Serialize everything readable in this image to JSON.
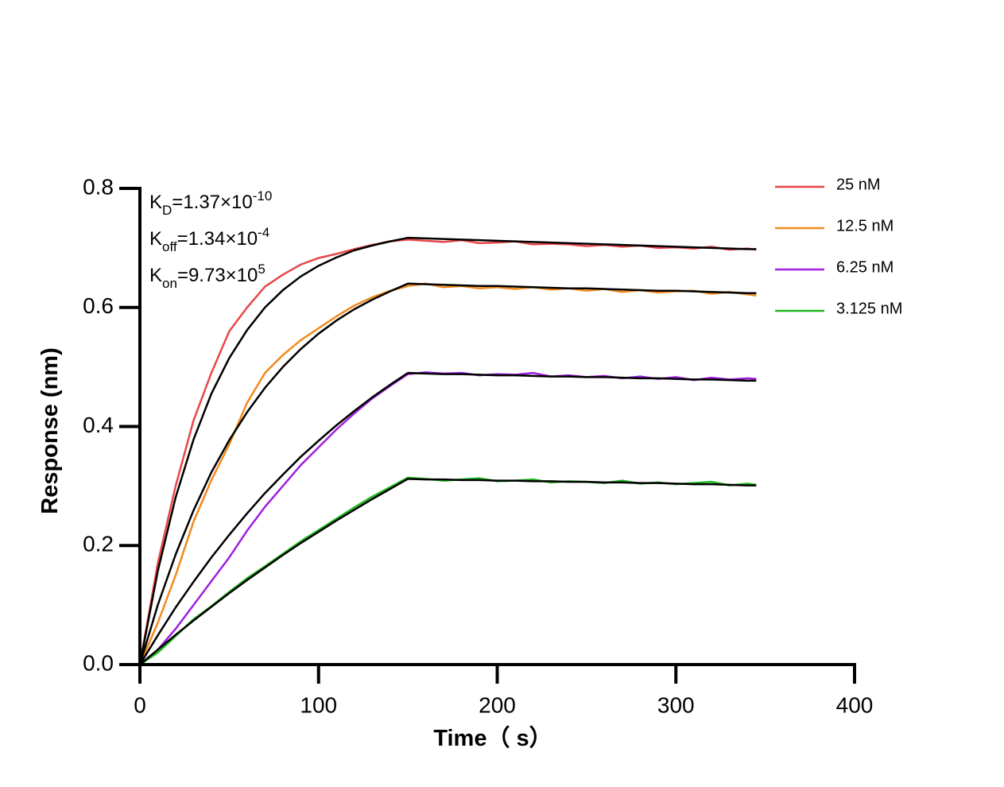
{
  "chart_data": {
    "type": "line",
    "xlabel": "Time（ s）",
    "ylabel": "Response (nm)",
    "annotations": [
      {
        "symbol": "K",
        "subscript": "D",
        "text": "=1.37×10",
        "superscript": "-10"
      },
      {
        "symbol": "K",
        "subscript": "off",
        "text": "=1.34×10",
        "superscript": "-4"
      },
      {
        "symbol": "K",
        "subscript": "on",
        "text": "=9.73×10",
        "superscript": "5"
      }
    ],
    "x": [
      0,
      10,
      20,
      30,
      40,
      50,
      60,
      70,
      80,
      90,
      100,
      110,
      120,
      130,
      140,
      150,
      160,
      170,
      180,
      190,
      200,
      210,
      220,
      230,
      240,
      250,
      260,
      270,
      280,
      290,
      300,
      310,
      320,
      330,
      340,
      345
    ],
    "series": [
      {
        "name": "25 nM",
        "color": "#e8474a",
        "values": [
          0,
          0.17,
          0.3,
          0.41,
          0.49,
          0.56,
          0.6,
          0.635,
          0.655,
          0.672,
          0.683,
          0.69,
          0.698,
          0.705,
          0.711,
          0.714,
          0.712,
          0.71,
          0.713,
          0.708,
          0.709,
          0.711,
          0.706,
          0.707,
          0.706,
          0.703,
          0.705,
          0.702,
          0.704,
          0.7,
          0.701,
          0.699,
          0.702,
          0.697,
          0.699,
          0.697
        ]
      },
      {
        "name": "12.5 nM",
        "color": "#f28a1c",
        "values": [
          0,
          0.07,
          0.15,
          0.24,
          0.31,
          0.37,
          0.44,
          0.49,
          0.52,
          0.545,
          0.565,
          0.585,
          0.603,
          0.617,
          0.628,
          0.636,
          0.64,
          0.634,
          0.636,
          0.632,
          0.634,
          0.631,
          0.634,
          0.63,
          0.632,
          0.628,
          0.631,
          0.626,
          0.629,
          0.625,
          0.627,
          0.628,
          0.623,
          0.626,
          0.622,
          0.62
        ]
      },
      {
        "name": "6.25 nM",
        "color": "#a020e0",
        "values": [
          0,
          0.025,
          0.06,
          0.1,
          0.14,
          0.18,
          0.225,
          0.265,
          0.3,
          0.335,
          0.365,
          0.395,
          0.422,
          0.447,
          0.468,
          0.488,
          0.491,
          0.489,
          0.49,
          0.486,
          0.488,
          0.487,
          0.49,
          0.484,
          0.486,
          0.483,
          0.485,
          0.481,
          0.484,
          0.48,
          0.483,
          0.478,
          0.482,
          0.479,
          0.481,
          0.48
        ]
      },
      {
        "name": "3.125 nM",
        "color": "#1cb81c",
        "values": [
          0,
          0.02,
          0.048,
          0.076,
          0.098,
          0.122,
          0.145,
          0.165,
          0.186,
          0.207,
          0.226,
          0.245,
          0.264,
          0.282,
          0.298,
          0.314,
          0.312,
          0.309,
          0.311,
          0.313,
          0.308,
          0.309,
          0.311,
          0.306,
          0.308,
          0.307,
          0.305,
          0.309,
          0.304,
          0.306,
          0.303,
          0.305,
          0.307,
          0.301,
          0.304,
          0.302
        ]
      }
    ],
    "fits": [
      {
        "color": "#000000",
        "values": [
          0,
          0.157,
          0.281,
          0.378,
          0.455,
          0.515,
          0.562,
          0.6,
          0.629,
          0.652,
          0.67,
          0.684,
          0.696,
          0.704,
          0.711,
          0.717,
          0.716,
          0.715,
          0.714,
          0.713,
          0.712,
          0.711,
          0.71,
          0.709,
          0.708,
          0.707,
          0.706,
          0.705,
          0.704,
          0.703,
          0.702,
          0.701,
          0.7,
          0.699,
          0.698,
          0.698
        ]
      },
      {
        "color": "#000000",
        "values": [
          0,
          0.1,
          0.185,
          0.259,
          0.323,
          0.377,
          0.424,
          0.465,
          0.5,
          0.53,
          0.556,
          0.578,
          0.597,
          0.613,
          0.627,
          0.64,
          0.639,
          0.638,
          0.637,
          0.636,
          0.636,
          0.635,
          0.634,
          0.633,
          0.632,
          0.632,
          0.631,
          0.63,
          0.629,
          0.628,
          0.628,
          0.627,
          0.626,
          0.625,
          0.624,
          0.624
        ]
      },
      {
        "color": "#000000",
        "values": [
          0,
          0.049,
          0.096,
          0.139,
          0.18,
          0.218,
          0.254,
          0.288,
          0.319,
          0.349,
          0.376,
          0.402,
          0.426,
          0.449,
          0.47,
          0.49,
          0.489,
          0.488,
          0.488,
          0.487,
          0.486,
          0.486,
          0.485,
          0.484,
          0.484,
          0.483,
          0.483,
          0.482,
          0.481,
          0.481,
          0.48,
          0.479,
          0.479,
          0.478,
          0.477,
          0.477
        ]
      },
      {
        "color": "#000000",
        "values": [
          0,
          0.025,
          0.05,
          0.074,
          0.097,
          0.12,
          0.142,
          0.163,
          0.184,
          0.204,
          0.223,
          0.242,
          0.26,
          0.278,
          0.295,
          0.312,
          0.311,
          0.311,
          0.31,
          0.31,
          0.309,
          0.309,
          0.308,
          0.308,
          0.307,
          0.307,
          0.306,
          0.306,
          0.305,
          0.305,
          0.304,
          0.303,
          0.303,
          0.302,
          0.301,
          0.301
        ]
      }
    ],
    "xlim": [
      0,
      400
    ],
    "xticks": [
      0,
      100,
      200,
      300,
      400
    ],
    "ylim": [
      0,
      0.8
    ],
    "yticks": [
      {
        "value": 0,
        "label": "0.0"
      },
      0.2,
      0.4,
      0.6,
      0.8
    ],
    "legend": "top-right",
    "grid": false
  }
}
